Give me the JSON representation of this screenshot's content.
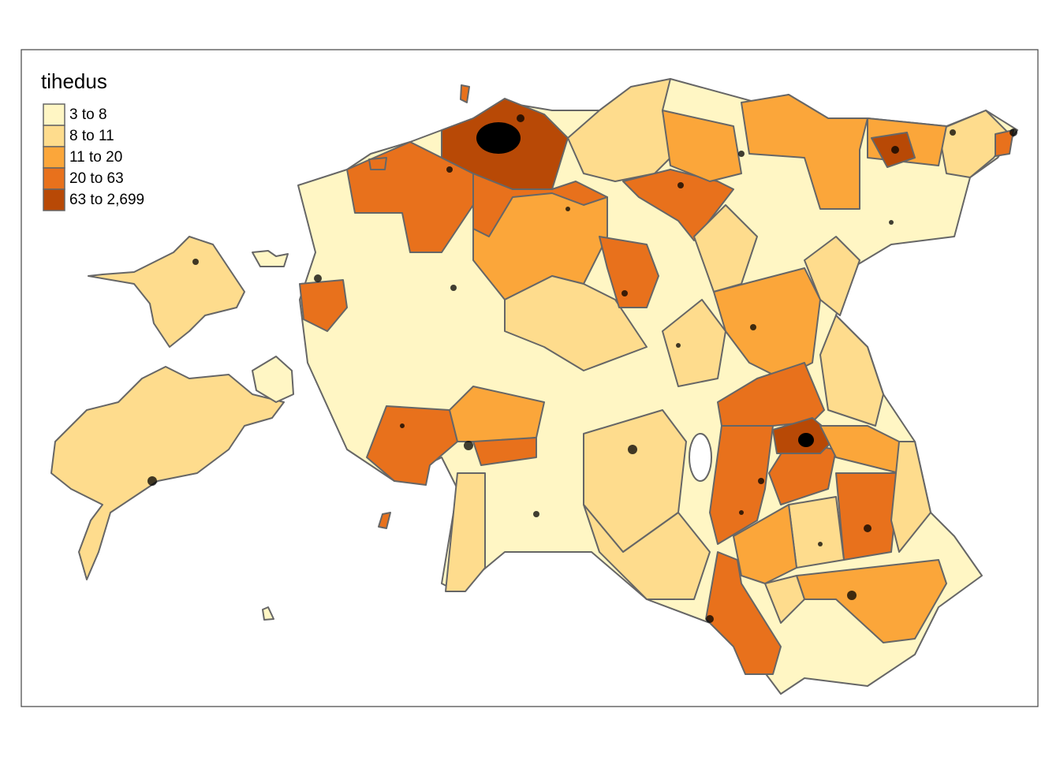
{
  "legend": {
    "title": "tihedus",
    "items": [
      {
        "label": "3 to 8",
        "color": "#fff6c4"
      },
      {
        "label": "8 to 11",
        "color": "#fedc8d"
      },
      {
        "label": "11 to 20",
        "color": "#fba63a"
      },
      {
        "label": "20 to 63",
        "color": "#e8711c"
      },
      {
        "label": "63 to 2,699",
        "color": "#b84906"
      }
    ]
  }
}
